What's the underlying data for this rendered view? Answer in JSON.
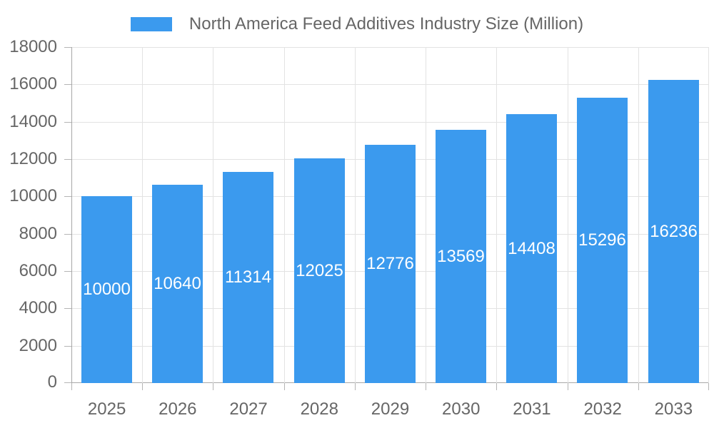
{
  "chart": {
    "legend": {
      "label": "North America Feed Additives Industry Size (Million)"
    },
    "accent_color": "#3B9AEE"
  },
  "chart_data": {
    "type": "bar",
    "title": "North America Feed Additives Industry Size (Million)",
    "series_name": "North America Feed Additives Industry Size (Million)",
    "categories": [
      "2025",
      "2026",
      "2027",
      "2028",
      "2029",
      "2030",
      "2031",
      "2032",
      "2033"
    ],
    "values": [
      10000,
      10640,
      11314,
      12025,
      12776,
      13569,
      14408,
      15296,
      16236
    ],
    "xlabel": "",
    "ylabel": "",
    "ylim": [
      0,
      18000
    ],
    "ytick_step": 2000,
    "ytick_labels": [
      "0",
      "2000",
      "4000",
      "6000",
      "8000",
      "10000",
      "12000",
      "14000",
      "16000",
      "18000"
    ],
    "grid": true,
    "legend_position": "top-center",
    "bar_label_position": "inside-center",
    "bar_color": "#3B9AEE",
    "bar_label_color": "#ffffff"
  }
}
